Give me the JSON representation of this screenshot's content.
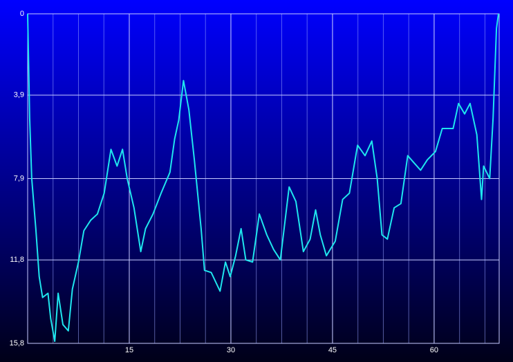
{
  "chart_data": {
    "type": "line",
    "y_inverted": true,
    "grid": true,
    "color": "#1fe6ee",
    "xlim": [
      0,
      69.6
    ],
    "xticks": [
      15,
      30,
      45,
      60
    ],
    "ylim": [
      0,
      15.8
    ],
    "yticks": [
      0,
      {
        "value": 3.9,
        "label": "3,9"
      },
      {
        "value": 7.9,
        "label": "7,9"
      },
      {
        "value": 11.8,
        "label": "11,8"
      },
      {
        "value": 15.8,
        "label": "15,8"
      }
    ],
    "x": [
      0,
      0.3,
      0.6,
      1.2,
      1.7,
      2.2,
      3.0,
      3.4,
      4.0,
      4.5,
      5.2,
      6.0,
      6.6,
      7.5,
      8.3,
      9.3,
      10.3,
      11.3,
      12.3,
      13.2,
      14.0,
      14.7,
      15.7,
      16.7,
      17.4,
      18.5,
      19.7,
      21.0,
      21.7,
      22.3,
      23.0,
      23.8,
      24.6,
      25.6,
      26.1,
      27.1,
      28.4,
      29.2,
      29.9,
      30.7,
      31.5,
      32.2,
      33.2,
      34.2,
      35.3,
      36.3,
      37.3,
      38.6,
      39.6,
      40.7,
      41.7,
      42.5,
      43.2,
      44.1,
      45.4,
      46.5,
      47.5,
      48.7,
      49.8,
      50.8,
      51.6,
      52.3,
      53.1,
      54.1,
      55.1,
      56.1,
      56.9,
      58.0,
      59.0,
      60.2,
      61.2,
      62.8,
      63.6,
      64.5,
      65.3,
      66.3,
      67.0,
      67.3,
      68.2,
      68.7,
      69.2,
      69.5
    ],
    "values": [
      0,
      5.0,
      7.9,
      10.3,
      12.6,
      13.6,
      13.4,
      14.6,
      15.7,
      13.4,
      14.9,
      15.2,
      13.2,
      11.9,
      10.4,
      9.9,
      9.6,
      8.6,
      6.5,
      7.3,
      6.5,
      7.9,
      9.3,
      11.4,
      10.3,
      9.6,
      8.6,
      7.6,
      6.0,
      5.1,
      3.2,
      4.6,
      7.0,
      10.3,
      12.3,
      12.4,
      13.3,
      11.9,
      12.6,
      11.6,
      10.3,
      11.8,
      11.9,
      9.6,
      10.6,
      11.3,
      11.8,
      8.3,
      9.0,
      11.4,
      10.8,
      9.4,
      10.6,
      11.6,
      10.9,
      8.9,
      8.6,
      6.3,
      6.8,
      6.1,
      7.9,
      10.6,
      10.8,
      9.3,
      9.1,
      6.8,
      7.1,
      7.5,
      7.0,
      6.6,
      5.5,
      5.5,
      4.3,
      4.8,
      4.3,
      5.8,
      8.9,
      7.3,
      7.9,
      5.0,
      0.7,
      0
    ]
  }
}
